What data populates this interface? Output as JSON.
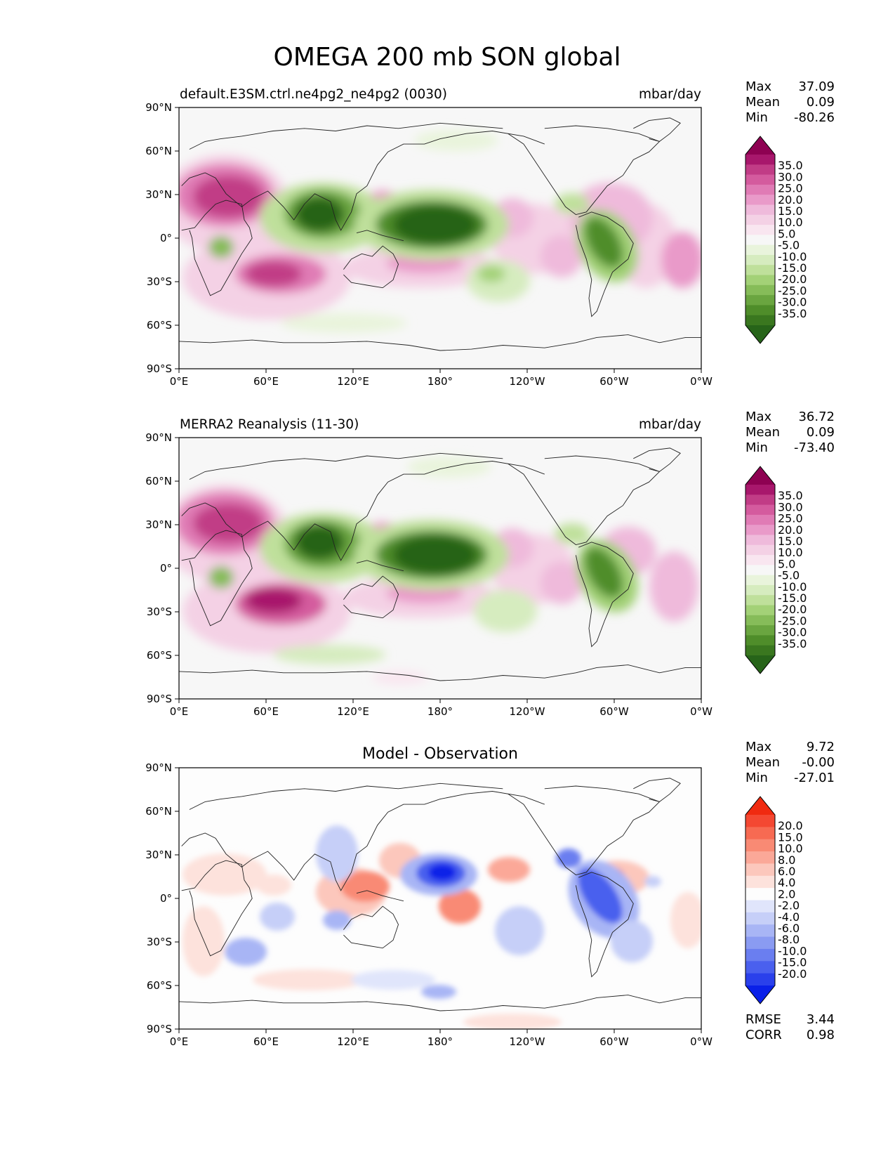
{
  "figure": {
    "title": "OMEGA 200 mb SON global"
  },
  "axes": {
    "lat_ticks": [
      "90°N",
      "60°N",
      "30°N",
      "0°",
      "30°S",
      "60°S",
      "90°S"
    ],
    "lon_ticks": [
      "0°E",
      "60°E",
      "120°E",
      "180°",
      "120°W",
      "60°W",
      "0°W"
    ]
  },
  "colors": {
    "pos_scale": [
      "#f7f7f7",
      "#f9e6f0",
      "#f4d1e5",
      "#efbadb",
      "#e99ac9",
      "#e07bb5",
      "#d45b9e",
      "#c13c86",
      "#a8176c",
      "#8e0152"
    ],
    "neg_scale": [
      "#f7f7f7",
      "#e9f4dc",
      "#d6ecbf",
      "#bfe09b",
      "#a3d177",
      "#86bc59",
      "#6aa540",
      "#4f8d2a",
      "#3a771f",
      "#276419"
    ],
    "diff_pos": [
      "#fdfdfd",
      "#fde2dc",
      "#fcc7bc",
      "#fba898",
      "#f98a74",
      "#f76a52",
      "#f44832",
      "#f02a10"
    ],
    "diff_neg": [
      "#fdfdfd",
      "#e0e5fb",
      "#c6cff8",
      "#a8b5f5",
      "#8a9bf2",
      "#6a7ef0",
      "#4a60ee",
      "#2a40eb",
      "#0a20e8"
    ]
  },
  "chart_data": [
    {
      "type": "heatmap",
      "panel": "test",
      "title": "default.E3SM.ctrl.ne4pg2_ne4pg2 (0030)",
      "units": "mbar/day",
      "stats": {
        "max": "37.09",
        "mean": "0.09",
        "min": "-80.26"
      },
      "colorbar_labels": [
        "35.0",
        "30.0",
        "25.0",
        "20.0",
        "15.0",
        "10.0",
        "5.0",
        "-5.0",
        "-10.0",
        "-15.0",
        "-20.0",
        "-25.0",
        "-30.0",
        "-35.0"
      ],
      "xlim": [
        0,
        360
      ],
      "ylim": [
        -90,
        90
      ]
    },
    {
      "type": "heatmap",
      "panel": "reference",
      "title": "MERRA2 Reanalysis (11-30)",
      "units": "mbar/day",
      "stats": {
        "max": "36.72",
        "mean": "0.09",
        "min": "-73.40"
      },
      "colorbar_labels": [
        "35.0",
        "30.0",
        "25.0",
        "20.0",
        "15.0",
        "10.0",
        "5.0",
        "-5.0",
        "-10.0",
        "-15.0",
        "-20.0",
        "-25.0",
        "-30.0",
        "-35.0"
      ],
      "xlim": [
        0,
        360
      ],
      "ylim": [
        -90,
        90
      ]
    },
    {
      "type": "heatmap",
      "panel": "difference",
      "title": "Model - Observation",
      "units": "",
      "stats": {
        "max": "9.72",
        "mean": "-0.00",
        "min": "-27.01"
      },
      "colorbar_labels": [
        "20.0",
        "15.0",
        "10.0",
        "8.0",
        "6.0",
        "4.0",
        "2.0",
        "-2.0",
        "-4.0",
        "-6.0",
        "-8.0",
        "-10.0",
        "-15.0",
        "-20.0"
      ],
      "metrics": {
        "rmse": "3.44",
        "corr": "0.98"
      },
      "xlim": [
        0,
        360
      ],
      "ylim": [
        -90,
        90
      ]
    }
  ],
  "labels": {
    "max": "Max",
    "mean": "Mean",
    "min": "Min",
    "rmse": "RMSE",
    "corr": "CORR"
  }
}
